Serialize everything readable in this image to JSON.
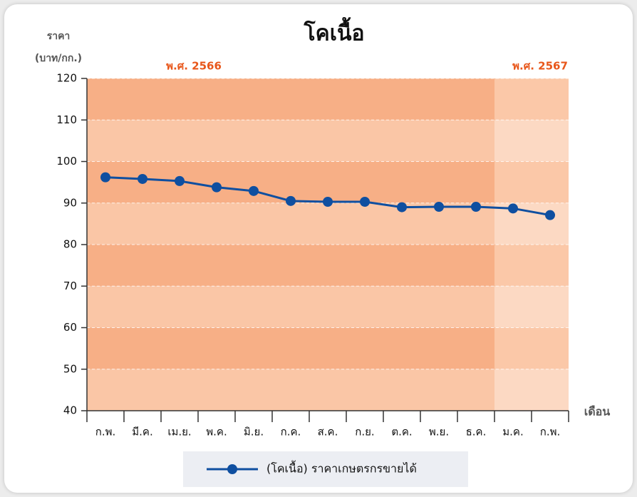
{
  "chart_data": {
    "type": "line",
    "title": "โคเนื้อ",
    "y_label": [
      "ราคา",
      "(บาท/กก.)"
    ],
    "x_label": "เดือน",
    "categories": [
      "ก.พ.",
      "มี.ค.",
      "เม.ย.",
      "พ.ค.",
      "มิ.ย.",
      "ก.ค.",
      "ส.ค.",
      "ก.ย.",
      "ต.ค.",
      "พ.ย.",
      "ธ.ค.",
      "ม.ค.",
      "ก.พ."
    ],
    "periods": [
      {
        "label": "พ.ศ. 2566",
        "span": 11,
        "band_colors": [
          "#f7af86",
          "#fac6a6"
        ],
        "label_color": "#e8571b"
      },
      {
        "label": "พ.ศ. 2567",
        "span": 2,
        "band_colors": [
          "#fbc8a8",
          "#fcd9c3"
        ],
        "label_color": "#e8571b"
      }
    ],
    "series": [
      {
        "name": "(โคเนื้อ) ราคาเกษตรกรขายได้",
        "color": "#0f4fa0",
        "values": [
          96.2,
          95.8,
          95.3,
          93.8,
          92.9,
          90.5,
          90.3,
          90.3,
          89.0,
          89.1,
          89.1,
          88.7,
          87.1
        ]
      }
    ],
    "ylim": [
      40,
      120
    ],
    "yticks": [
      40,
      50,
      60,
      70,
      80,
      90,
      100,
      110,
      120
    ],
    "grid": true,
    "legend": "bottom"
  }
}
